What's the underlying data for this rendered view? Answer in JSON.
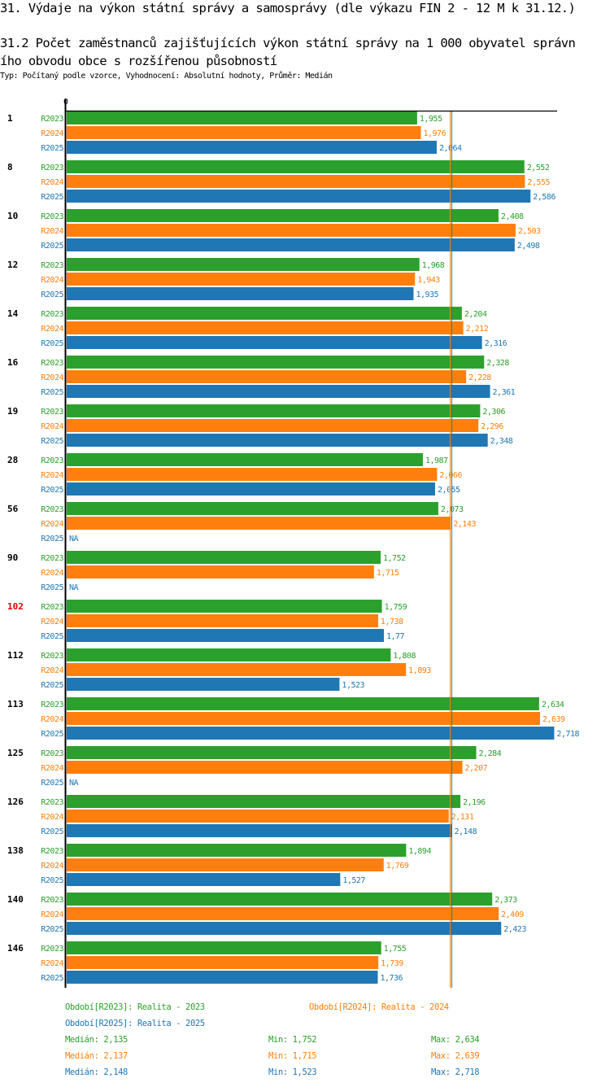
{
  "header": {
    "title": "31. Výdaje na výkon státní správy a samosprávy (dle výkazu FIN 2 - 12 M k 31.12.)",
    "subtitle_line1": "31.2 Počet zaměstnanců zajišťujících výkon státní správy na 1 000 obyvatel správn",
    "subtitle_line2": "ího obvodu obce s rozšířenou působností",
    "meta": "Typ: Počítaný podle vzorce, Vyhodnocení: Absolutní hodnoty, Průměr: Medián"
  },
  "colors": {
    "R2023": "#2ca02c",
    "R2024": "#ff7f0e",
    "R2025": "#1f77b4",
    "highlight": "#e00000",
    "axis": "#000000"
  },
  "chart_data": {
    "type": "bar",
    "orientation": "horizontal",
    "title": "31.2 Počet zaměstnanců zajišťujících výkon státní správy na 1 000 obyvatel správního obvodu obce s rozšířenou působností",
    "xlabel": "",
    "ylabel": "",
    "x_tick_labels": [
      "0"
    ],
    "xlim": [
      0,
      2740
    ],
    "grid": false,
    "highlighted_category": "102",
    "categories": [
      "1",
      "8",
      "10",
      "12",
      "14",
      "16",
      "19",
      "28",
      "56",
      "90",
      "102",
      "112",
      "113",
      "125",
      "126",
      "138",
      "140",
      "146"
    ],
    "series": [
      {
        "name": "R2023",
        "values": [
          1.955,
          2.552,
          2.408,
          1.968,
          2.204,
          2.328,
          2.306,
          1.987,
          2.073,
          1.752,
          1.759,
          1.808,
          2.634,
          2.284,
          2.196,
          1.894,
          2.373,
          1.755
        ],
        "labels": [
          "1,955",
          "2,552",
          "2,408",
          "1,968",
          "2,204",
          "2,328",
          "2,306",
          "1,987",
          "2,073",
          "1,752",
          "1,759",
          "1,808",
          "2,634",
          "2,284",
          "2,196",
          "1,894",
          "2,373",
          "1,755"
        ]
      },
      {
        "name": "R2024",
        "values": [
          1.976,
          2.555,
          2.503,
          1.943,
          2.212,
          2.228,
          2.296,
          2.066,
          2.143,
          1.715,
          1.738,
          1.893,
          2.639,
          2.207,
          2.131,
          1.769,
          2.409,
          1.739
        ],
        "labels": [
          "1,976",
          "2,555",
          "2,503",
          "1,943",
          "2,212",
          "2,228",
          "2,296",
          "2,066",
          "2,143",
          "1,715",
          "1,738",
          "1,893",
          "2,639",
          "2,207",
          "2,131",
          "1,769",
          "2,409",
          "1,739"
        ]
      },
      {
        "name": "R2025",
        "values": [
          2.064,
          2.586,
          2.498,
          1.935,
          2.316,
          2.361,
          2.348,
          2.055,
          null,
          null,
          1.77,
          1.523,
          2.718,
          null,
          2.148,
          1.527,
          2.423,
          1.736
        ],
        "labels": [
          "2,064",
          "2,586",
          "2,498",
          "1,935",
          "2,316",
          "2,361",
          "2,348",
          "2,055",
          "NA",
          "NA",
          "1,77",
          "1,523",
          "2,718",
          "NA",
          "2,148",
          "1,527",
          "2,423",
          "1,736"
        ]
      }
    ],
    "median_lines": [
      {
        "series": "R2023",
        "value": 2.135
      },
      {
        "series": "R2024",
        "value": 2.137
      },
      {
        "series": "R2025",
        "value": 2.148
      }
    ],
    "legend_position": "bottom"
  },
  "legend": {
    "items": [
      {
        "series": "R2023",
        "text": "Období[R2023]: Realita - 2023"
      },
      {
        "series": "R2024",
        "text": "Období[R2024]: Realita - 2024"
      },
      {
        "series": "R2025",
        "text": "Období[R2025]: Realita - 2025"
      }
    ],
    "stats": [
      {
        "series": "R2023",
        "median": "Medián: 2,135",
        "min": "Min: 1,752",
        "max": "Max: 2,634"
      },
      {
        "series": "R2024",
        "median": "Medián: 2,137",
        "min": "Min: 1,715",
        "max": "Max: 2,639"
      },
      {
        "series": "R2025",
        "median": "Medián: 2,148",
        "min": "Min: 1,523",
        "max": "Max: 2,718"
      }
    ]
  }
}
